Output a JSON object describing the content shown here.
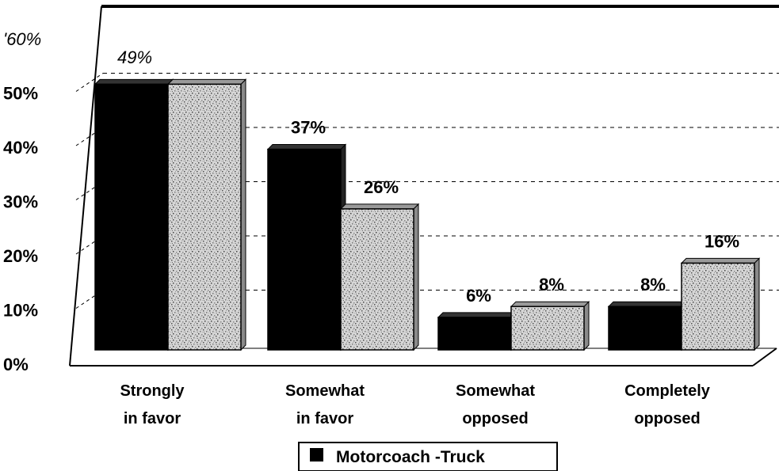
{
  "chart_data": {
    "type": "bar",
    "categories": [
      "Strongly\nin favor",
      "Somewhat\nin favor",
      "Somewhat\nopposed",
      "Completely\nopposed"
    ],
    "series": [
      {
        "name": "Motorcoach",
        "color": "#000000",
        "values": [
          49,
          37,
          6,
          8
        ],
        "labels": [
          "49%",
          "37%",
          "6%",
          "8%"
        ]
      },
      {
        "name": "Truck",
        "color": "#bdbdbd",
        "values": [
          49,
          26,
          8,
          16
        ],
        "labels": [
          "",
          "26%",
          "8%",
          "16%"
        ]
      }
    ],
    "ylim": [
      0,
      60
    ],
    "yticks": [
      "0%",
      "10%",
      "20%",
      "30%",
      "40%",
      "50%",
      "'60%"
    ],
    "grid": true,
    "legend_position": "bottom",
    "legend_text": "Motorcoach -Truck"
  }
}
